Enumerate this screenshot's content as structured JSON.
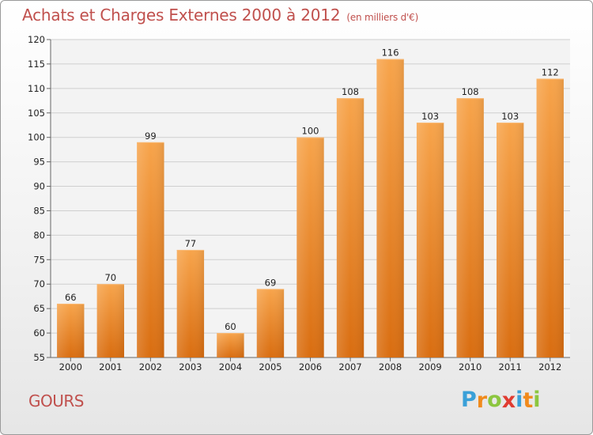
{
  "chart_data": {
    "type": "bar",
    "title": "Achats et Charges Externes 2000 à 2012",
    "subtitle": "(en milliers d'€)",
    "categories": [
      "2000",
      "2001",
      "2002",
      "2003",
      "2004",
      "2005",
      "2006",
      "2007",
      "2008",
      "2009",
      "2010",
      "2011",
      "2012"
    ],
    "values": [
      66,
      70,
      99,
      77,
      60,
      69,
      100,
      108,
      116,
      103,
      108,
      103,
      112
    ],
    "ylim": [
      55,
      120
    ],
    "yticks": [
      55,
      60,
      65,
      70,
      75,
      80,
      85,
      90,
      95,
      100,
      105,
      110,
      115,
      120
    ],
    "xlabel": "",
    "ylabel": "",
    "grid": true,
    "bar_color": "#f0922e"
  },
  "commune": "GOURS",
  "logo": {
    "letters": [
      "P",
      "r",
      "o",
      "x",
      "i",
      "t",
      "i"
    ],
    "colors": [
      "#3aa0d8",
      "#f08a1c",
      "#8cc63f",
      "#e03c31",
      "#3aa0d8",
      "#f08a1c",
      "#8cc63f"
    ]
  }
}
